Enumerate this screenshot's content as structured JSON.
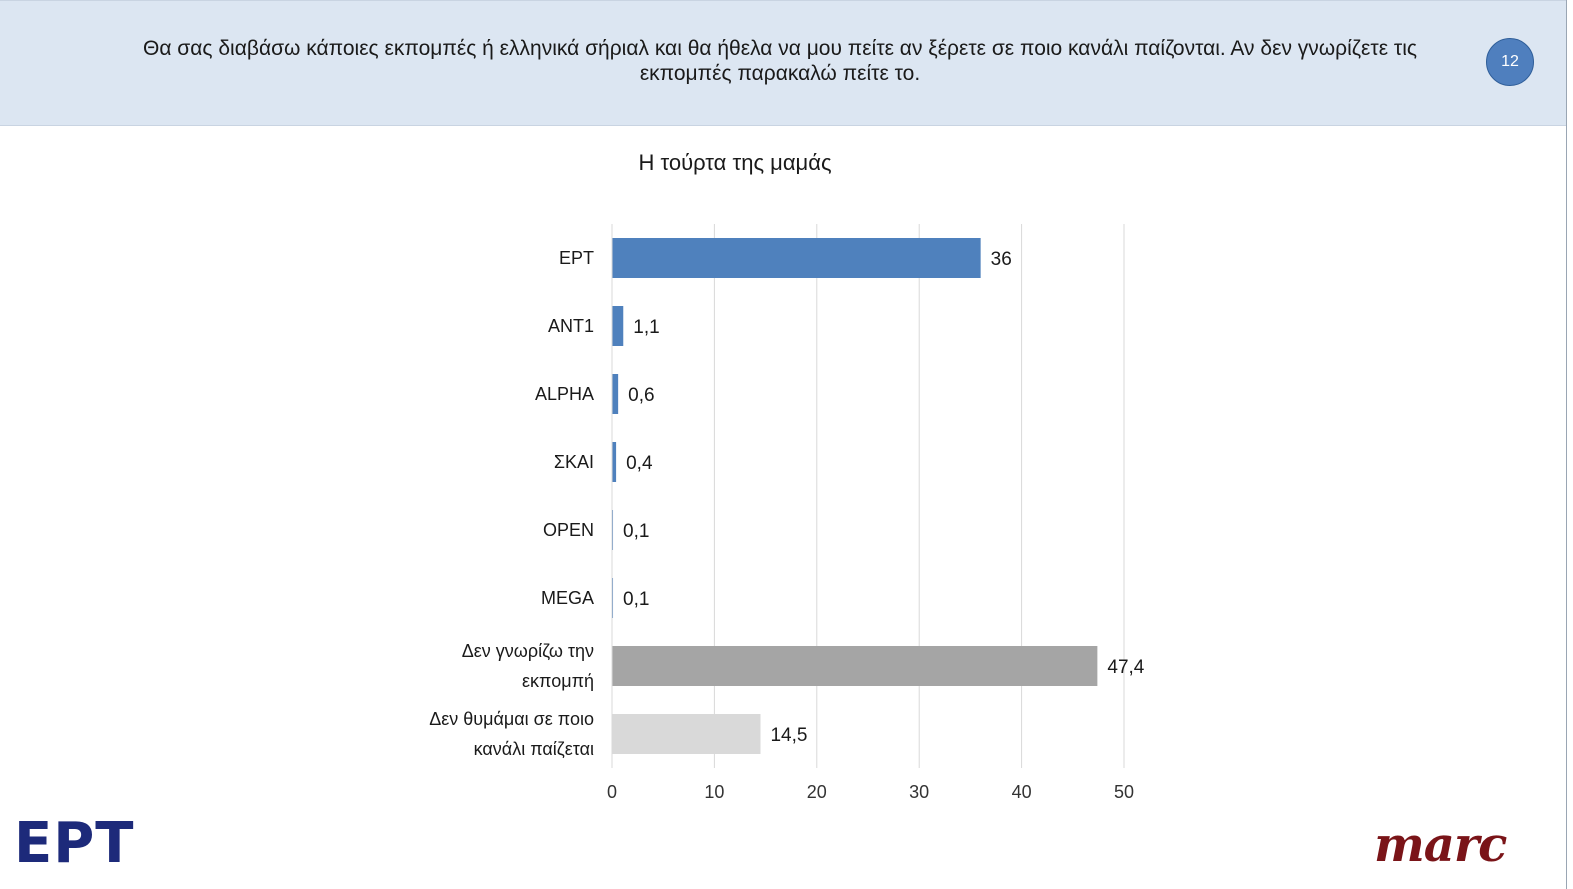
{
  "header": {
    "question": "Θα σας διαβάσω κάποιες εκπομπές ή ελληνικά σήριαλ και θα ήθελα να μου πείτε αν ξέρετε σε ποιο κανάλι παίζονται. Αν δεν γνωρίζετε τις εκπομπές παρακαλώ πείτε το.",
    "slide_number": "12"
  },
  "chart_data": {
    "type": "bar",
    "orientation": "horizontal",
    "title": "Η τούρτα της μαμάς",
    "categories": [
      [
        "ΕΡΤ"
      ],
      [
        "ΑΝΤ1"
      ],
      [
        "ALPHA"
      ],
      [
        "ΣΚΑΙ"
      ],
      [
        "OPEN"
      ],
      [
        "MEGA"
      ],
      [
        "Δεν γνωρίζω την",
        "εκπομπή"
      ],
      [
        "Δεν θυμάμαι σε ποιο",
        "κανάλι παίζεται"
      ]
    ],
    "values": [
      36,
      1.1,
      0.6,
      0.4,
      0.1,
      0.1,
      47.4,
      14.5
    ],
    "value_labels": [
      "36",
      "1,1",
      "0,6",
      "0,4",
      "0,1",
      "0,1",
      "47,4",
      "14,5"
    ],
    "colors": [
      "#4f81bd",
      "#4f81bd",
      "#4f81bd",
      "#4f81bd",
      "#4f81bd",
      "#4f81bd",
      "#a5a5a5",
      "#d9d9d9"
    ],
    "xlim": [
      0,
      50
    ],
    "xticks": [
      0,
      10,
      20,
      30,
      40,
      50
    ],
    "xlabel": "",
    "ylabel": "",
    "grid": "vertical",
    "legend": "none"
  },
  "logos": {
    "left": "ΕΡΤ",
    "right": "marc"
  }
}
